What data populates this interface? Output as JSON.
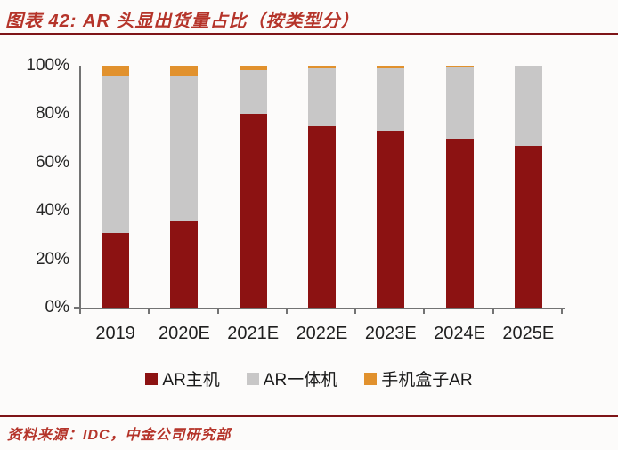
{
  "header": {
    "title": "图表 42: AR 头显出货量占比（按类型分）"
  },
  "footer": {
    "source": "资料来源：IDC，中金公司研究部"
  },
  "colors": {
    "title_red": "#b5342a",
    "rule_red": "#7e1417",
    "axis_gray": "#737373",
    "label_dark": "#262626",
    "background": "#fcfbfa"
  },
  "chart_data": {
    "type": "bar",
    "stacked": true,
    "normalized_to_100_percent": true,
    "title": "图表 42: AR 头显出货量占比（按类型分）",
    "xlabel": "",
    "ylabel": "",
    "ylim": [
      0,
      100
    ],
    "grid": false,
    "legend_position": "bottom",
    "y_ticks": [
      "0%",
      "20%",
      "40%",
      "60%",
      "80%",
      "100%"
    ],
    "categories": [
      "2019",
      "2020E",
      "2021E",
      "2022E",
      "2023E",
      "2024E",
      "2025E"
    ],
    "series": [
      {
        "name": "AR主机",
        "key": "ar-host",
        "color": "#8c1212",
        "values": [
          31,
          36,
          80,
          75,
          73,
          70,
          67
        ]
      },
      {
        "name": "AR一体机",
        "key": "ar-all-in-one",
        "color": "#c8c7c7",
        "values": [
          65,
          60,
          18,
          24,
          26,
          29.5,
          33
        ]
      },
      {
        "name": "手机盒子AR",
        "key": "phone-box-ar",
        "color": "#e1912d",
        "values": [
          4,
          4,
          2,
          1,
          1,
          0.5,
          0
        ]
      }
    ]
  }
}
